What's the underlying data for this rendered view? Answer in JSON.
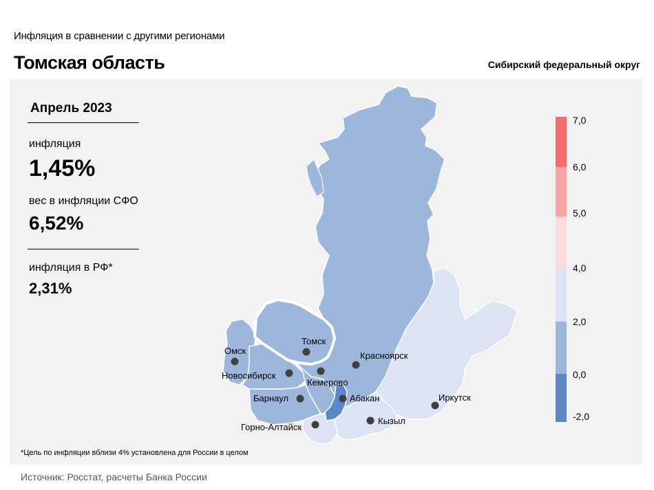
{
  "header": {
    "subtitle": "Инфляция  в сравнении  с другими  регионами",
    "region": "Томская область",
    "district": "Сибирский федеральный округ"
  },
  "info": {
    "period": "Апрель 2023",
    "inflation_label": "инфляция",
    "inflation_value": "1,45%",
    "weight_label": "вес в инфляции  СФО",
    "weight_value": "6,52%",
    "rf_label": "инфляция  в РФ*",
    "rf_value": "2,31%"
  },
  "footnote": "*Цель по инфляции вблизи 4% установлена для России в целом",
  "source": "Источник: Росстат, расчеты Банка России",
  "cities": {
    "omsk": "Омск",
    "novosibirsk": "Новосибирск",
    "tomsk": "Томск",
    "krasnoyarsk": "Красноярск",
    "kemerovo": "Кемерово",
    "barnaul": "Барнаул",
    "abakan": "Абакан",
    "irkutsk": "Иркутск",
    "gorno_altaysk": "Горно-Алтайск",
    "kyzyl": "Кызыл"
  },
  "scale": {
    "ticks": [
      "7,0",
      "6,0",
      "5,0",
      "4,0",
      "2,0",
      "0,0",
      "-2,0"
    ],
    "colors": [
      "#f56c6c",
      "#f9a3a6",
      "#fbdbe0",
      "#dbe3f4",
      "#9db7dc",
      "#5b88c6"
    ]
  },
  "colors": {
    "main_region": "#9db7dc",
    "low_region": "#dbe3f4",
    "khakassia": "#5b88c6",
    "highlight_border": "#ffffff"
  }
}
